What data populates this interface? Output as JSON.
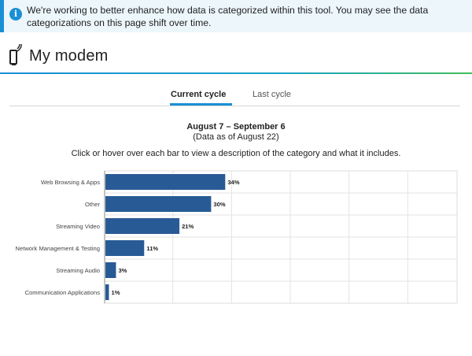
{
  "banner": {
    "icon": "info-icon",
    "text": "We're working to better enhance how data is categorized within this tool. You may see the data categorizations on this page shift over time."
  },
  "header": {
    "title": "My modem",
    "icon": "modem-icon"
  },
  "tabs": [
    {
      "label": "Current cycle",
      "active": true
    },
    {
      "label": "Last cycle",
      "active": false
    }
  ],
  "period": {
    "range": "August 7 – September 6",
    "as_of": "(Data as of August 22)"
  },
  "instructions": "Click or hover over each bar to view a description of the category and what it includes.",
  "colors": {
    "accent": "#1a8fd6",
    "bar": "#285b95",
    "banner_bg": "#ecf6fb"
  },
  "chart_data": {
    "type": "bar",
    "orientation": "horizontal",
    "categories": [
      "Web Browsing & Apps",
      "Other",
      "Streaming Video",
      "Network Management & Testing",
      "Streaming Audio",
      "Communication Applications"
    ],
    "values": [
      34,
      30,
      21,
      11,
      3,
      1
    ],
    "value_labels": [
      "34%",
      "30%",
      "21%",
      "11%",
      "3%",
      "1%"
    ],
    "unit": "%",
    "xlim": [
      0,
      100
    ],
    "grid": true
  }
}
